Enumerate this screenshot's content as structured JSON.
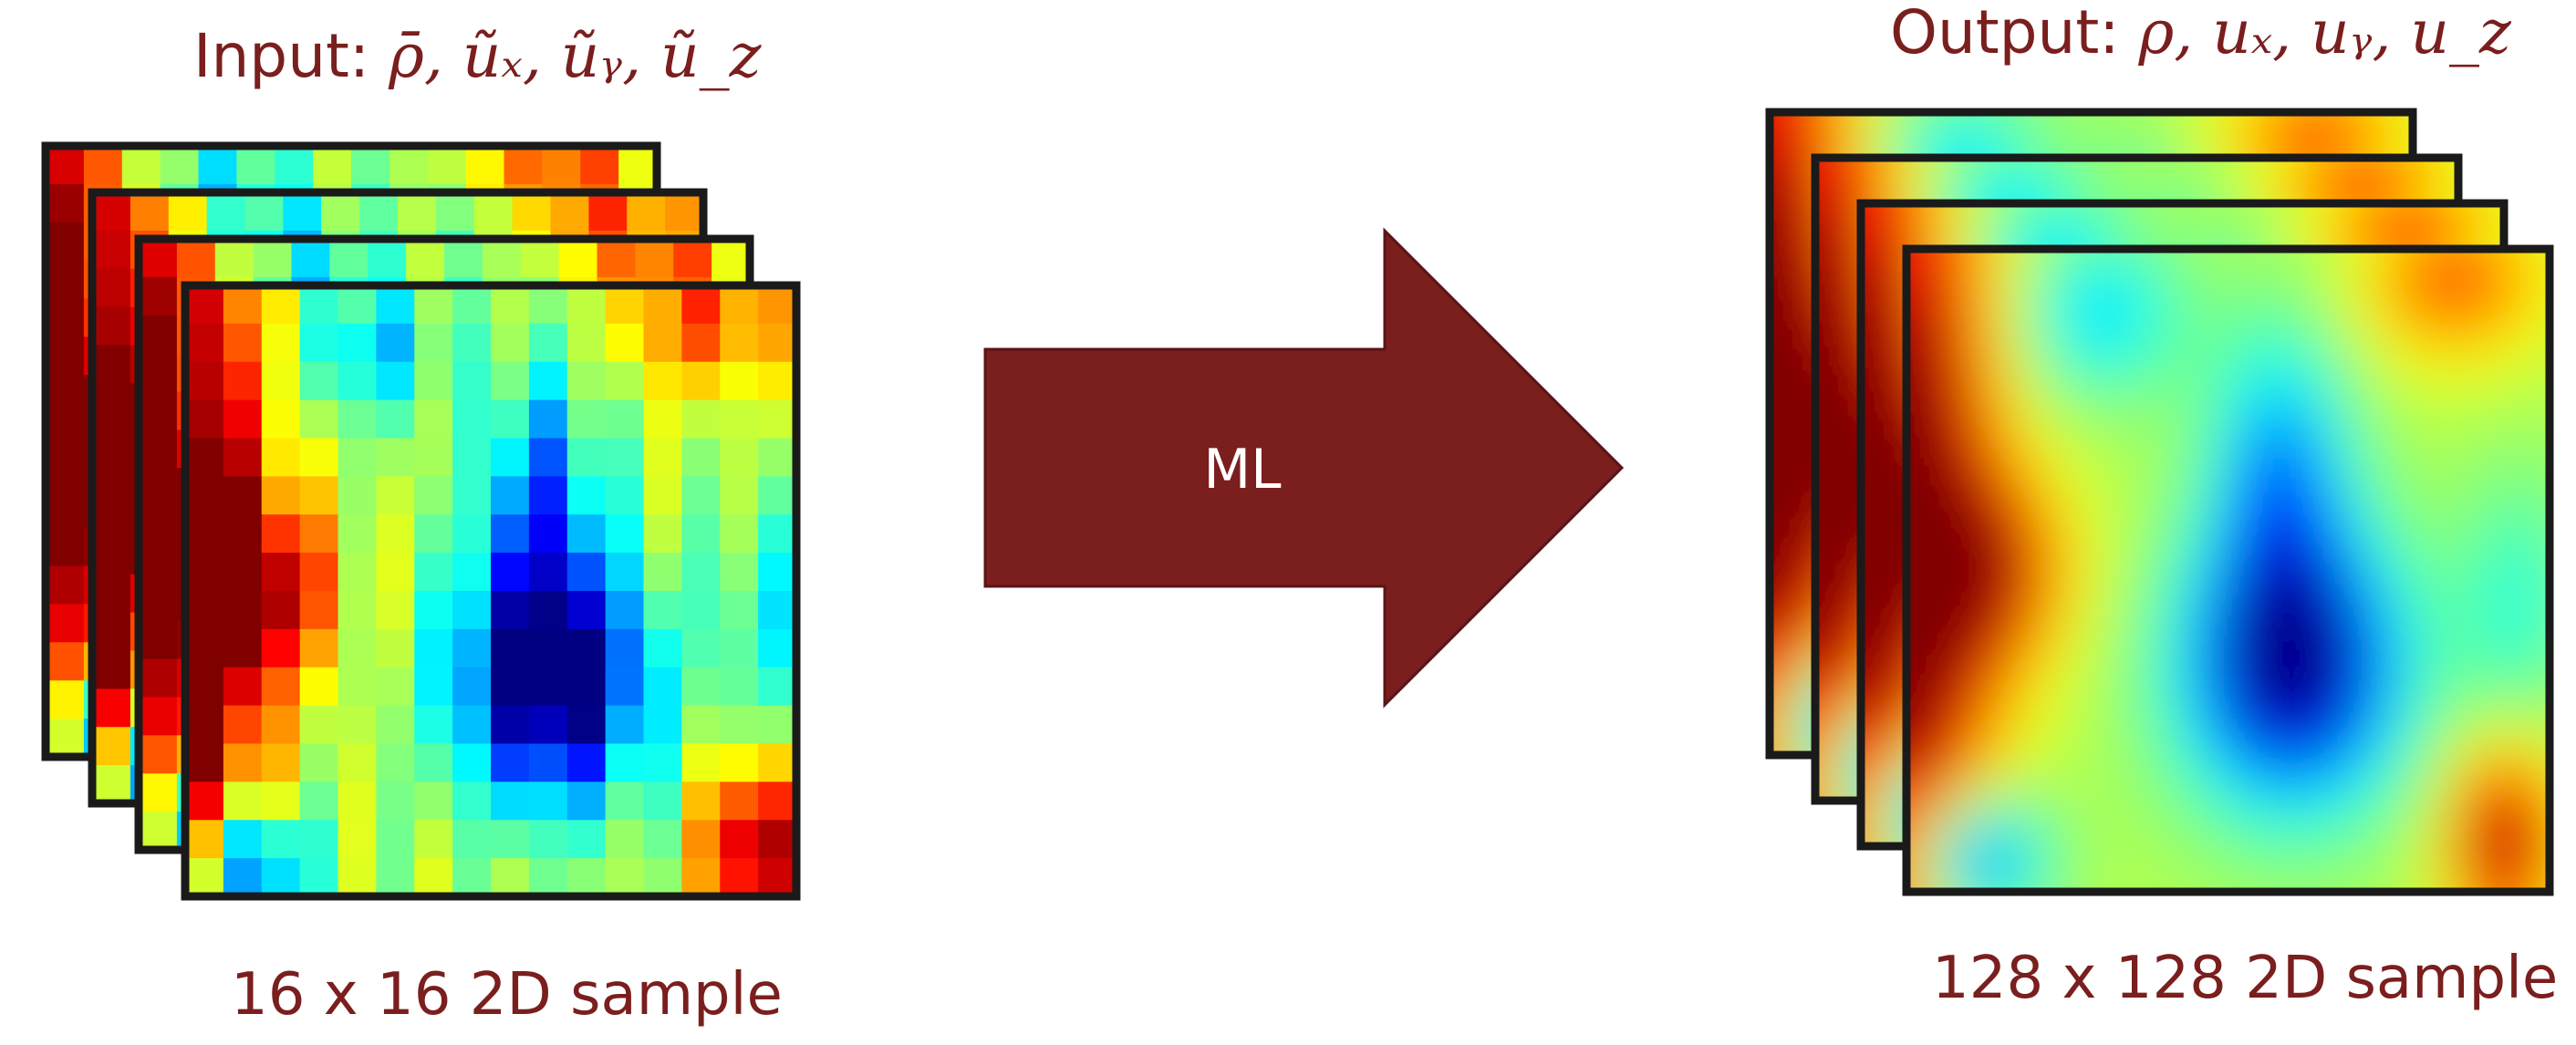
{
  "input_panel": {
    "title_prefix": "Input: ",
    "title_vars": "ρ̄, ũₓ, ũᵧ, ũ_z",
    "caption": "16 x 16 2D sample",
    "layer_count": 4,
    "grid_resolution": 16
  },
  "arrow": {
    "label": "ML",
    "fill_color": "#7a1e1e"
  },
  "output_panel": {
    "title_prefix": "Output: ",
    "title_vars": "ρ, uₓ, uᵧ, u_z",
    "caption": "128 x 128 2D sample",
    "layer_count": 4
  },
  "colors": {
    "text": "#7a1e1e",
    "frame": "#1a1a1a",
    "colormap": "jet"
  }
}
